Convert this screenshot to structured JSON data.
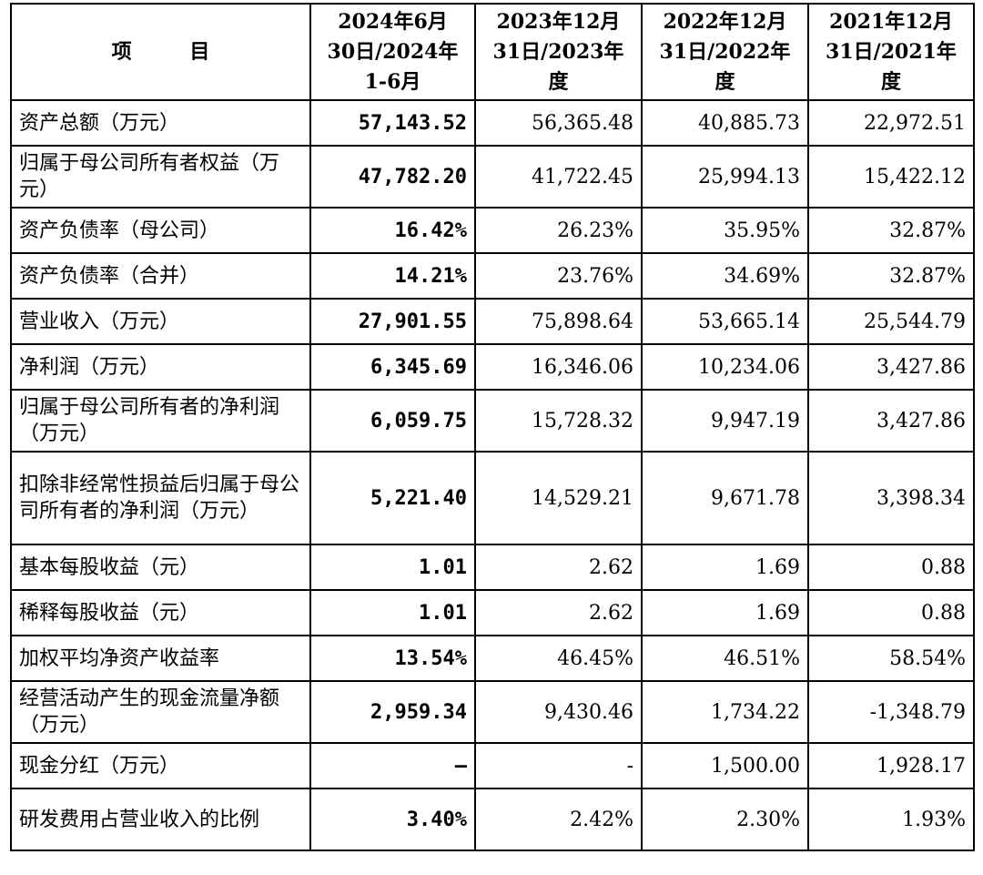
{
  "table": {
    "headers": [
      "项 目",
      "2024年6月\n30日/2024年\n1-6月",
      "2023年12月\n31日/2023年\n度",
      "2022年12月\n31日/2022年\n度",
      "2021年12月\n31日/2021年\n度"
    ],
    "rows": [
      {
        "label": "资产总额（万元）",
        "values": [
          "57,143.52",
          "56,365.48",
          "40,885.73",
          "22,972.51"
        ]
      },
      {
        "label": "归属于母公司所有者权益（万元）",
        "values": [
          "47,782.20",
          "41,722.45",
          "25,994.13",
          "15,422.12"
        ]
      },
      {
        "label": "资产负债率（母公司）",
        "values": [
          "16.42%",
          "26.23%",
          "35.95%",
          "32.87%"
        ]
      },
      {
        "label": "资产负债率（合并）",
        "values": [
          "14.21%",
          "23.76%",
          "34.69%",
          "32.87%"
        ]
      },
      {
        "label": "营业收入（万元）",
        "values": [
          "27,901.55",
          "75,898.64",
          "53,665.14",
          "25,544.79"
        ]
      },
      {
        "label": "净利润（万元）",
        "values": [
          "6,345.69",
          "16,346.06",
          "10,234.06",
          "3,427.86"
        ]
      },
      {
        "label": "归属于母公司所有者的净利润（万元）",
        "values": [
          "6,059.75",
          "15,728.32",
          "9,947.19",
          "3,427.86"
        ]
      },
      {
        "label": "扣除非经常性损益后归属于母公司所有者的净利润（万元）",
        "values": [
          "5,221.40",
          "14,529.21",
          "9,671.78",
          "3,398.34"
        ]
      },
      {
        "label": "基本每股收益（元）",
        "values": [
          "1.01",
          "2.62",
          "1.69",
          "0.88"
        ]
      },
      {
        "label": "稀释每股收益（元）",
        "values": [
          "1.01",
          "2.62",
          "1.69",
          "0.88"
        ]
      },
      {
        "label": "加权平均净资产收益率",
        "values": [
          "13.54%",
          "46.45%",
          "46.51%",
          "58.54%"
        ]
      },
      {
        "label": "经营活动产生的现金流量净额（万元）",
        "values": [
          "2,959.34",
          "9,430.46",
          "1,734.22",
          "-1,348.79"
        ]
      },
      {
        "label": "现金分红（万元）",
        "values": [
          "–",
          "-",
          "1,500.00",
          "1,928.17"
        ]
      },
      {
        "label": "研发费用占营业收入的比例",
        "values": [
          "3.40%",
          "2.42%",
          "2.30%",
          "1.93%"
        ]
      }
    ]
  }
}
